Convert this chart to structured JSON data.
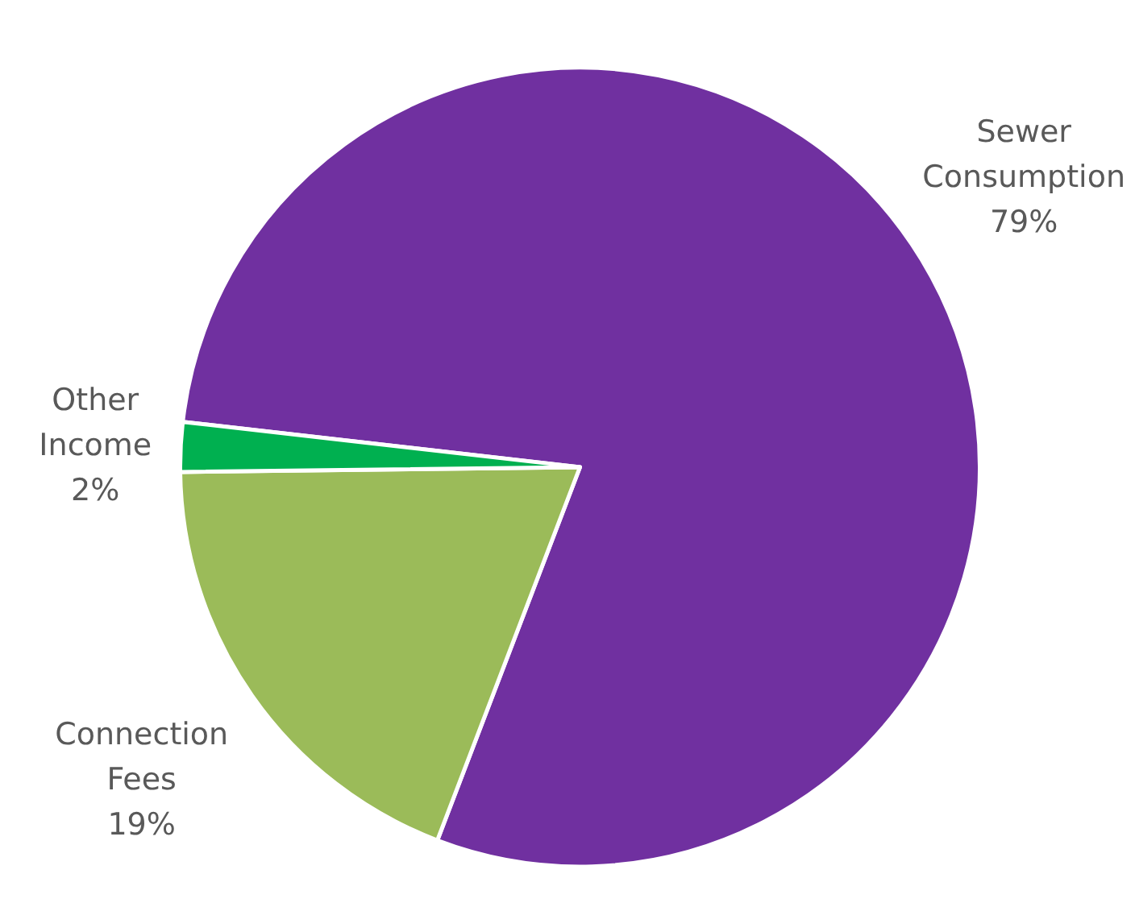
{
  "chart_data": {
    "type": "pie",
    "categories": [
      "Sewer Consumption",
      "Connection Fees",
      "Other Income"
    ],
    "values": [
      79,
      19,
      2
    ],
    "value_labels": [
      "79%",
      "19%",
      "2%"
    ],
    "colors": [
      "#7030a0",
      "#9bbb59",
      "#00b050"
    ],
    "legend": false
  }
}
